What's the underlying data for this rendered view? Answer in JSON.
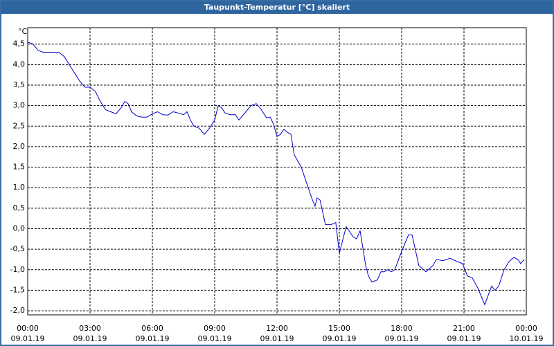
{
  "chart_data": {
    "type": "line",
    "title": "Taupunkt-Temperatur [°C] skaliert",
    "y_label": "°C",
    "xlim": [
      0,
      24
    ],
    "ylim": [
      -2.1,
      4.9
    ],
    "xticks": [
      {
        "value": 0,
        "label": "00:00",
        "date": "09.01.19"
      },
      {
        "value": 3,
        "label": "03:00",
        "date": "09.01.19"
      },
      {
        "value": 6,
        "label": "06:00",
        "date": "09.01.19"
      },
      {
        "value": 9,
        "label": "09:00",
        "date": "09.01.19"
      },
      {
        "value": 12,
        "label": "12:00",
        "date": "09.01.19"
      },
      {
        "value": 15,
        "label": "15:00",
        "date": "09.01.19"
      },
      {
        "value": 18,
        "label": "18:00",
        "date": "09.01.19"
      },
      {
        "value": 21,
        "label": "21:00",
        "date": "09.01.19"
      },
      {
        "value": 24,
        "label": "00:00",
        "date": "10.01.19"
      }
    ],
    "yticks": [
      {
        "value": 4.5,
        "label": "4,5"
      },
      {
        "value": 4,
        "label": "4,0"
      },
      {
        "value": 3.5,
        "label": "3,5"
      },
      {
        "value": 3,
        "label": "3,0"
      },
      {
        "value": 2.5,
        "label": "2,5"
      },
      {
        "value": 2,
        "label": "2,0"
      },
      {
        "value": 1.5,
        "label": "1,5"
      },
      {
        "value": 1,
        "label": "1,0"
      },
      {
        "value": 0.5,
        "label": "0,5"
      },
      {
        "value": 0,
        "label": "0,0"
      },
      {
        "value": -0.5,
        "label": "-0,5"
      },
      {
        "value": -1,
        "label": "-1,0"
      },
      {
        "value": -1.5,
        "label": "-1,5"
      },
      {
        "value": -2,
        "label": "-2,0"
      }
    ],
    "grid": true,
    "series": [
      {
        "color": "#0000cc",
        "x": [
          0,
          0.25,
          0.5,
          0.75,
          1.0,
          1.5,
          1.75,
          2.0,
          2.25,
          2.5,
          2.75,
          3.0,
          3.25,
          3.5,
          3.75,
          4.0,
          4.25,
          4.5,
          4.67,
          4.83,
          5.0,
          5.25,
          5.5,
          5.75,
          6.0,
          6.25,
          6.5,
          6.75,
          7.0,
          7.25,
          7.5,
          7.67,
          7.83,
          8.0,
          8.25,
          8.5,
          8.75,
          9.0,
          9.17,
          9.33,
          9.5,
          9.75,
          10.0,
          10.17,
          10.5,
          10.75,
          11.0,
          11.25,
          11.5,
          11.67,
          11.83,
          12.0,
          12.17,
          12.33,
          12.5,
          12.67,
          12.83,
          13.17,
          13.5,
          13.67,
          13.83,
          13.93,
          14.07,
          14.33,
          14.6,
          14.83,
          15.0,
          15.33,
          15.67,
          15.83,
          16.0,
          16.27,
          16.4,
          16.57,
          16.83,
          17.0,
          17.17,
          17.33,
          17.5,
          17.67,
          18.0,
          18.33,
          18.5,
          18.83,
          19.17,
          19.5,
          19.67,
          20.0,
          20.33,
          20.67,
          20.93,
          21.17,
          21.4,
          21.67,
          22.0,
          22.33,
          22.5,
          22.67,
          22.93,
          23.17,
          23.4,
          23.6,
          23.73,
          23.9
        ],
        "values": [
          4.55,
          4.5,
          4.35,
          4.3,
          4.3,
          4.3,
          4.2,
          4.0,
          3.8,
          3.6,
          3.45,
          3.45,
          3.35,
          3.1,
          2.9,
          2.85,
          2.8,
          2.95,
          3.1,
          3.05,
          2.85,
          2.75,
          2.72,
          2.72,
          2.8,
          2.85,
          2.78,
          2.77,
          2.85,
          2.82,
          2.78,
          2.85,
          2.65,
          2.5,
          2.45,
          2.3,
          2.45,
          2.65,
          3.0,
          2.95,
          2.82,
          2.78,
          2.78,
          2.65,
          2.85,
          3.0,
          3.05,
          2.9,
          2.7,
          2.72,
          2.55,
          2.25,
          2.3,
          2.42,
          2.35,
          2.3,
          1.8,
          1.5,
          1.0,
          0.75,
          0.55,
          0.75,
          0.7,
          0.1,
          0.1,
          0.15,
          -0.6,
          0.05,
          -0.2,
          -0.25,
          -0.05,
          -0.9,
          -1.15,
          -1.3,
          -1.25,
          -1.05,
          -1.05,
          -1.0,
          -1.05,
          -1.0,
          -0.55,
          -0.15,
          -0.15,
          -0.9,
          -1.05,
          -0.9,
          -0.75,
          -0.78,
          -0.72,
          -0.8,
          -0.85,
          -1.15,
          -1.2,
          -1.45,
          -1.85,
          -1.4,
          -1.5,
          -1.4,
          -1.0,
          -0.8,
          -0.7,
          -0.75,
          -0.85,
          -0.75
        ]
      }
    ]
  }
}
